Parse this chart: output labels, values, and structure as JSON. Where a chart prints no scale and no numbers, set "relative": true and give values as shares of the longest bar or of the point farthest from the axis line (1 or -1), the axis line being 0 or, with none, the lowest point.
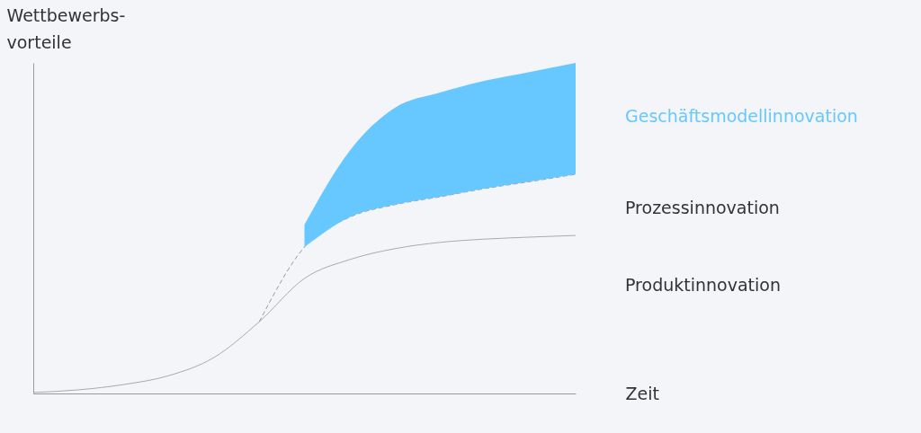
{
  "chart_data": {
    "type": "line",
    "relative": true,
    "xlabel": "Zeit",
    "ylabel": "Wettbewerbs-\nvorteile",
    "categories": [
      null,
      null,
      null,
      null,
      null,
      null,
      null,
      null,
      null,
      null,
      null,
      null,
      null
    ],
    "series": [
      {
        "name": "Produktinnovation",
        "color": "#aaaaaa",
        "line_style": "solid",
        "values": [
          0.003,
          0.011,
          0.027,
          0.054,
          0.109,
          0.217,
          0.348,
          0.405,
          0.438,
          0.457,
          0.467,
          0.473,
          0.478
        ]
      },
      {
        "name": "Prozessinnovation",
        "color": "#999999",
        "line_style": "dashed",
        "values": [
          null,
          null,
          null,
          null,
          null,
          0.217,
          0.443,
          0.533,
          0.571,
          0.595,
          0.62,
          0.641,
          0.663
        ]
      },
      {
        "name": "Geschäftsmodellinnovation",
        "color": "#66c8ff",
        "type": "area",
        "values": [
          null,
          null,
          null,
          null,
          null,
          null,
          0.511,
          0.734,
          0.864,
          0.91,
          0.946,
          0.973,
          1
        ]
      }
    ]
  }
}
